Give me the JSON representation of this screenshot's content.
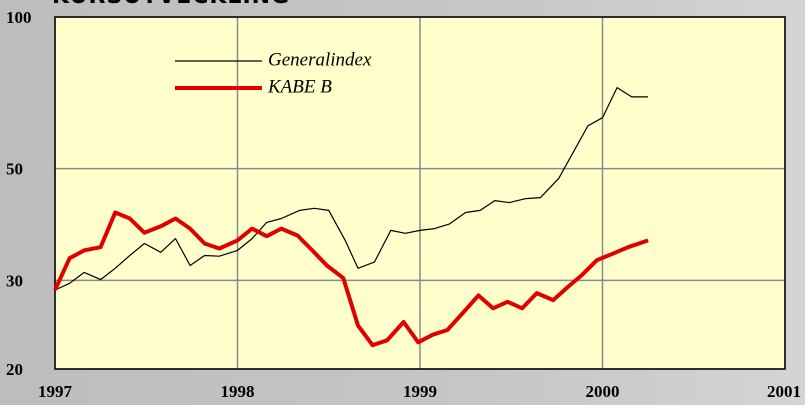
{
  "chart_data": {
    "type": "line",
    "title": "KURSUTVECKLING",
    "log_scale": true,
    "grid": true,
    "background": "#ffffcc",
    "xlim": [
      1997,
      2001
    ],
    "xticks": [
      1997,
      1998,
      1999,
      2000,
      2001
    ],
    "ylim": [
      20,
      100
    ],
    "yticks": [
      20,
      30,
      50,
      100
    ],
    "series": [
      {
        "name": "Generalindex",
        "color": "#000000",
        "width": 1.2,
        "x": [
          1997.0,
          1997.08,
          1997.16,
          1997.25,
          1997.33,
          1997.41,
          1997.49,
          1997.58,
          1997.66,
          1997.74,
          1997.82,
          1997.9,
          1998.0,
          1998.08,
          1998.16,
          1998.24,
          1998.34,
          1998.42,
          1998.5,
          1998.59,
          1998.66,
          1998.75,
          1998.84,
          1998.92,
          1999.0,
          1999.08,
          1999.16,
          1999.25,
          1999.33,
          1999.41,
          1999.49,
          1999.58,
          1999.66,
          1999.76,
          1999.83,
          1999.92,
          2000.0,
          2000.08,
          2000.16,
          2000.25
        ],
        "values": [
          28.7,
          29.6,
          31.1,
          30.1,
          31.7,
          33.6,
          35.5,
          34.1,
          36.3,
          32.1,
          33.6,
          33.5,
          34.4,
          36.3,
          39.1,
          39.8,
          41.3,
          41.7,
          41.3,
          36.0,
          31.7,
          32.6,
          37.7,
          37.2,
          37.7,
          38.0,
          38.8,
          40.9,
          41.3,
          43.2,
          42.8,
          43.6,
          43.8,
          47.8,
          53.1,
          60.8,
          63.1,
          72.4,
          69.4,
          69.4
        ]
      },
      {
        "name": "KABE B",
        "color": "#e00000",
        "width": 4,
        "x": [
          1997.0,
          1997.08,
          1997.16,
          1997.25,
          1997.33,
          1997.41,
          1997.49,
          1997.58,
          1997.66,
          1997.74,
          1997.82,
          1997.9,
          1998.0,
          1998.08,
          1998.16,
          1998.24,
          1998.33,
          1998.41,
          1998.49,
          1998.58,
          1998.66,
          1998.74,
          1998.82,
          1998.91,
          1998.99,
          1999.07,
          1999.15,
          1999.25,
          1999.32,
          1999.4,
          1999.48,
          1999.56,
          1999.64,
          1999.73,
          1999.81,
          1999.89,
          1999.97,
          2000.05,
          2000.14,
          2000.25
        ],
        "values": [
          28.7,
          33.2,
          34.4,
          34.9,
          40.9,
          39.8,
          37.3,
          38.4,
          39.8,
          38.0,
          35.5,
          34.7,
          36.0,
          38.0,
          36.7,
          38.0,
          36.8,
          34.4,
          32.1,
          30.3,
          24.4,
          22.3,
          22.8,
          24.8,
          22.6,
          23.4,
          23.9,
          26.2,
          28.0,
          26.4,
          27.2,
          26.4,
          28.3,
          27.4,
          29.1,
          30.8,
          32.9,
          33.8,
          34.9,
          36.0
        ]
      }
    ]
  }
}
